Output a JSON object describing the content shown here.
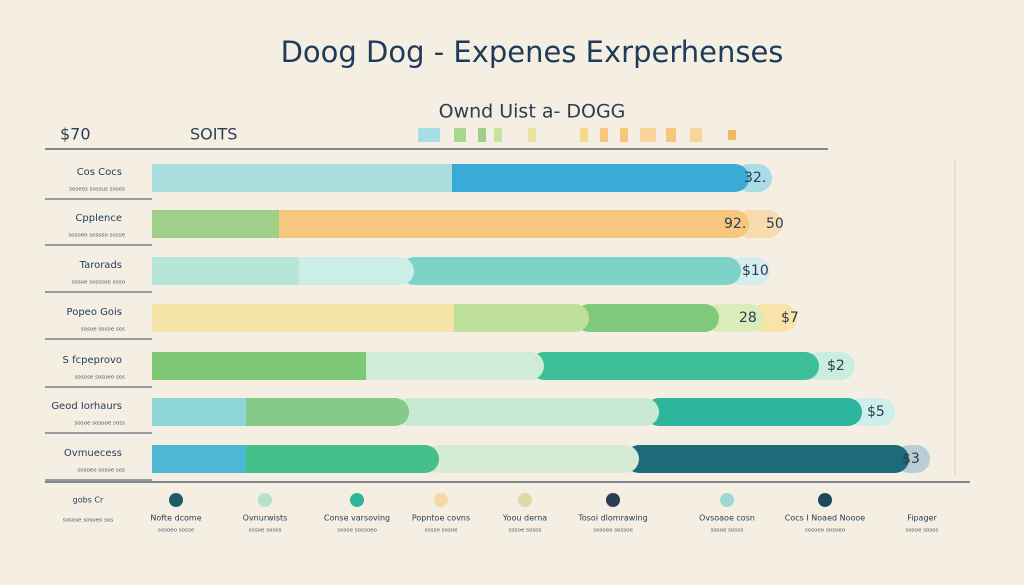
{
  "header": {
    "title": "Doog Dog - Expenes Exrperhenses",
    "subtitle": "Ownd Uist a- DOGG",
    "left": "$70",
    "right": "SOITS"
  },
  "rows": [
    {
      "label": "Cos Cocs",
      "note": "soseos sossus sosos",
      "ends": [
        "32."
      ]
    },
    {
      "label": "Cpplence",
      "note": "sosoeo sososo sosse",
      "ends": [
        "92.",
        "50"
      ]
    },
    {
      "label": "Tarorads",
      "note": "sosoe sosssoe soso",
      "ends": [
        "$10"
      ]
    },
    {
      "label": "Popeo Gois",
      "note": "sosoe sosoe sos",
      "ends": [
        "28",
        "$7"
      ]
    },
    {
      "label": "S fcpeprovo",
      "note": "sosose sosoeo sos",
      "ends": [
        "$2"
      ]
    },
    {
      "label": "Geod Iorhaurs",
      "note": "sosoe sosooe soss",
      "ends": [
        "$5"
      ]
    },
    {
      "label": "Ovmuecess",
      "note": "sosoeo sosoe sos",
      "ends": [
        "$3"
      ]
    }
  ],
  "footer": [
    {
      "label": "gobs Cr",
      "note": "sosose sosoeo sos"
    },
    {
      "label": "Nofte dcome",
      "note": "sosoeo sosse"
    },
    {
      "label": "Ovnurwists",
      "note": "sosoe sosos"
    },
    {
      "label": "Conse varsoving",
      "note": "sosoe sossoeo"
    },
    {
      "label": "Popntoe covns",
      "note": "sosse sosoe"
    },
    {
      "label": "Yoou derna",
      "note": "sosoe sosos"
    },
    {
      "label": "Tosoi dlomrawing",
      "note": "sosoeo sossoe"
    },
    {
      "label": "Ovsoaoe cosn",
      "note": "sosoe sosos"
    },
    {
      "label": "Cocs I Noaed Noooe",
      "note": "sosoeo sosoeo"
    },
    {
      "label": "Fipager",
      "note": "sosoe sosos"
    }
  ]
}
